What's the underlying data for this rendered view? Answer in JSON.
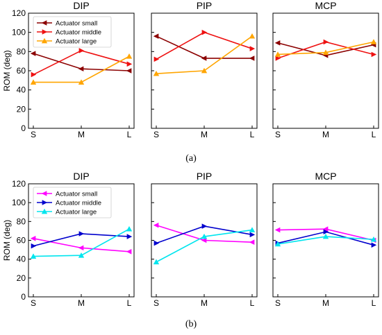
{
  "captions": [
    "(a)",
    "(b)"
  ],
  "chart_data": [
    {
      "type": "line",
      "caption": "(a)",
      "ylabel": "ROM (deg)",
      "ylim": [
        0,
        120
      ],
      "yticks": [
        0,
        20,
        40,
        60,
        80,
        100,
        120
      ],
      "categories": [
        "S",
        "M",
        "L"
      ],
      "legend": {
        "placement": "top-left of first panel"
      },
      "colors": {
        "Actuator small": "#8b0000",
        "Actuator middle": "#ee1111",
        "Actuator large": "#ffa500"
      },
      "panels": [
        {
          "title": "DIP",
          "series": [
            {
              "name": "Actuator small",
              "values": [
                78,
                62,
                60
              ]
            },
            {
              "name": "Actuator middle",
              "values": [
                56,
                81,
                67
              ]
            },
            {
              "name": "Actuator large",
              "values": [
                48,
                48,
                75
              ]
            }
          ]
        },
        {
          "title": "PIP",
          "series": [
            {
              "name": "Actuator small",
              "values": [
                96,
                73,
                73
              ]
            },
            {
              "name": "Actuator middle",
              "values": [
                72,
                100,
                83
              ]
            },
            {
              "name": "Actuator large",
              "values": [
                57,
                60,
                96
              ]
            }
          ]
        },
        {
          "title": "MCP",
          "series": [
            {
              "name": "Actuator small",
              "values": [
                89,
                76,
                87
              ]
            },
            {
              "name": "Actuator middle",
              "values": [
                73,
                90,
                77
              ]
            },
            {
              "name": "Actuator large",
              "values": [
                77,
                79,
                90
              ]
            }
          ]
        }
      ]
    },
    {
      "type": "line",
      "caption": "(b)",
      "ylabel": "ROM (deg)",
      "ylim": [
        0,
        120
      ],
      "yticks": [
        0,
        20,
        40,
        60,
        80,
        100,
        120
      ],
      "categories": [
        "S",
        "M",
        "L"
      ],
      "legend": {
        "placement": "top-left of first panel"
      },
      "colors": {
        "Actuator small": "#ff00ff",
        "Actuator middle": "#0000cd",
        "Actuator large": "#00e5ee"
      },
      "panels": [
        {
          "title": "DIP",
          "series": [
            {
              "name": "Actuator small",
              "values": [
                62,
                52,
                48
              ]
            },
            {
              "name": "Actuator middle",
              "values": [
                54,
                67,
                64
              ]
            },
            {
              "name": "Actuator large",
              "values": [
                43,
                44,
                72
              ]
            }
          ]
        },
        {
          "title": "PIP",
          "series": [
            {
              "name": "Actuator small",
              "values": [
                76,
                60,
                58
              ]
            },
            {
              "name": "Actuator middle",
              "values": [
                57,
                75,
                66
              ]
            },
            {
              "name": "Actuator large",
              "values": [
                37,
                64,
                71
              ]
            }
          ]
        },
        {
          "title": "MCP",
          "series": [
            {
              "name": "Actuator small",
              "values": [
                71,
                72,
                60
              ]
            },
            {
              "name": "Actuator middle",
              "values": [
                57,
                69,
                55
              ]
            },
            {
              "name": "Actuator large",
              "values": [
                56,
                64,
                61
              ]
            }
          ]
        }
      ]
    }
  ]
}
